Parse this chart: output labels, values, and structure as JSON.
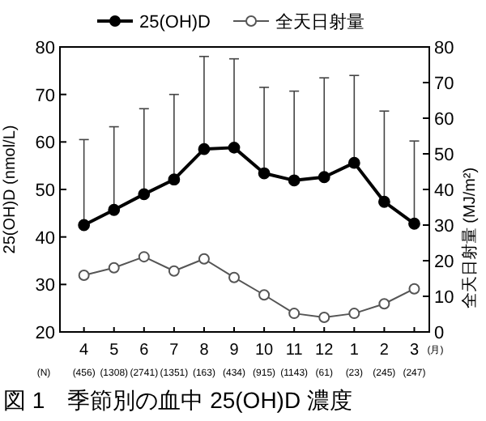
{
  "chart_data": {
    "type": "line",
    "title": "図 1　季節別の血中 25(OH)D 濃度",
    "categories": [
      "4",
      "5",
      "6",
      "7",
      "8",
      "9",
      "10",
      "11",
      "12",
      "1",
      "2",
      "3"
    ],
    "xlabel": "(月)",
    "series": [
      {
        "name": "25(OH)D",
        "color": "#000000",
        "marker": "circle",
        "values": [
          42.5,
          45.7,
          49,
          52.1,
          58.5,
          58.8,
          53.4,
          51.9,
          52.6,
          55.6,
          47.4,
          42.8
        ],
        "errors": [
          [
            42.5,
            60.5
          ],
          [
            45.7,
            63.2
          ],
          [
            49,
            67
          ],
          [
            52.1,
            70
          ],
          [
            58.5,
            78
          ],
          [
            58.8,
            77.5
          ],
          [
            53.4,
            71.5
          ],
          [
            51.9,
            70.7
          ],
          [
            52.6,
            73.5
          ],
          [
            55.6,
            74
          ],
          [
            47.4,
            66.5
          ],
          [
            42.8,
            60.2
          ]
        ]
      },
      {
        "name": "全天日射量",
        "color": "#555555",
        "marker": "circle",
        "axis": "y2",
        "values": [
          15.9,
          18,
          21.1,
          17.1,
          20.5,
          15.3,
          10.4,
          5.2,
          4.1,
          5.2,
          7.9,
          12.1
        ]
      }
    ],
    "ylabel": "25(OH)D (nmol/L)",
    "y2label": "全天日射量 (MJ/m²)",
    "ylim": [
      20,
      80
    ],
    "yticks": [
      20,
      30,
      40,
      50,
      60,
      70,
      80
    ],
    "y2lim": [
      0,
      80
    ],
    "y2ticks": [
      0,
      10,
      20,
      30,
      40,
      50,
      60,
      70,
      80
    ],
    "annotations": [
      "(N)",
      "(456)",
      "(1308)",
      "(2741)",
      "(1351)",
      "(163)",
      "(434)",
      "(915)",
      "(1143)",
      "(61)",
      "(23)",
      "(245)",
      "(247)"
    ],
    "legend": "top",
    "grid": false
  }
}
